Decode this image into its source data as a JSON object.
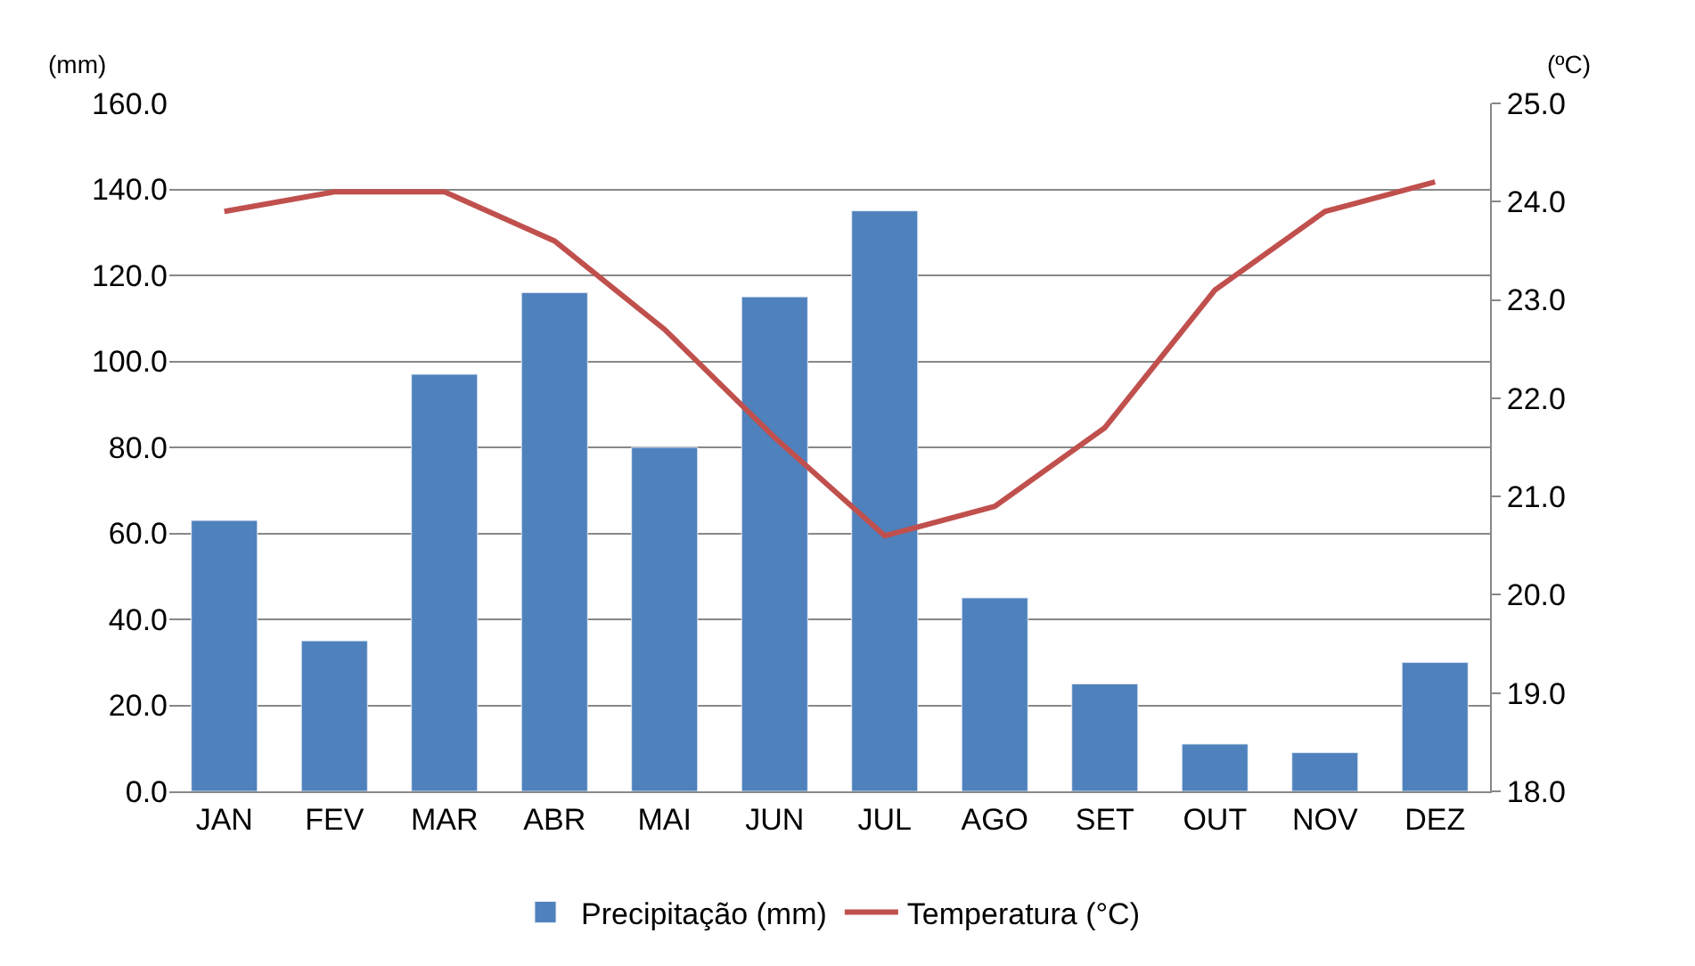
{
  "chart_data": {
    "type": "bar",
    "ylabel": "(mm)",
    "y2label": "(ºC)",
    "categories": [
      "JAN",
      "FEV",
      "MAR",
      "ABR",
      "MAI",
      "JUN",
      "JUL",
      "AGO",
      "SET",
      "OUT",
      "NOV",
      "DEZ"
    ],
    "series": [
      {
        "name": "Precipitação (mm)",
        "color": "#4f81bd",
        "values": [
          63,
          35,
          97,
          116,
          80,
          115,
          135,
          45,
          25,
          11,
          9,
          30
        ]
      },
      {
        "name": "Temperatura (°C)",
        "type": "line",
        "axis": "y2",
        "color": "#c0504d",
        "values": [
          23.9,
          24.1,
          24.1,
          23.6,
          22.7,
          21.6,
          20.6,
          20.9,
          21.7,
          23.1,
          23.9,
          24.2
        ]
      }
    ],
    "ylim": [
      0,
      160
    ],
    "yticks": [
      {
        "value": 0,
        "label": "0.0"
      },
      {
        "value": 20,
        "label": "20.0"
      },
      {
        "value": 40,
        "label": "40.0"
      },
      {
        "value": 60,
        "label": "60.0"
      },
      {
        "value": 80,
        "label": "80.0"
      },
      {
        "value": 100,
        "label": "100.0"
      },
      {
        "value": 120,
        "label": "120.0"
      },
      {
        "value": 140,
        "label": "140.0"
      },
      {
        "value": 160,
        "label": "160.0"
      }
    ],
    "y2lim": [
      18,
      25
    ],
    "y2ticks": [
      {
        "value": 18,
        "label": "18.0"
      },
      {
        "value": 19,
        "label": "19.0"
      },
      {
        "value": 20,
        "label": "20.0"
      },
      {
        "value": 21,
        "label": "21.0"
      },
      {
        "value": 22,
        "label": "22.0"
      },
      {
        "value": 23,
        "label": "23.0"
      },
      {
        "value": 24,
        "label": "24.0"
      },
      {
        "value": 25,
        "label": "25.0"
      }
    ],
    "grid": "y",
    "legend": "bottom"
  }
}
